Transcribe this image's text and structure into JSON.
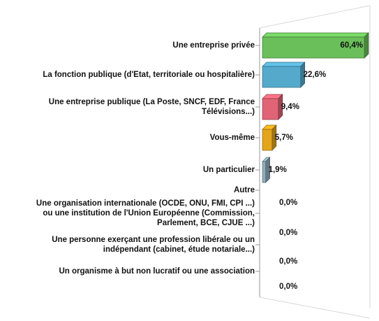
{
  "chart_data": {
    "type": "bar3d",
    "categories": [
      "Une entreprise privée",
      "La fonction publique (d'Etat, territoriale ou hospitalière)",
      "Une entreprise publique (La Poste, SNCF, EDF, France\nTélévisions...)",
      "Vous-même",
      "Un particulier",
      "Autre",
      "Une organisation internationale (OCDE, ONU, FMI, CPI ...)\nou une institution de l'Union Européenne (Commission,\nParlement, BCE, CJUE ...)",
      "Une personne exerçant une profession libérale ou un\nindépendant (cabinet, étude notariale...)",
      "Un organisme à but non lucratif ou une association"
    ],
    "values": [
      60.4,
      22.6,
      9.4,
      5.7,
      1.9,
      0,
      0,
      0,
      0
    ],
    "value_labels": [
      "60,4%",
      "22,6%",
      "9,4%",
      "5,7%",
      "1,9%",
      "0,0%",
      "0,0%",
      "0,0%",
      "0,0%"
    ],
    "colors": [
      "#6abf5a",
      "#55aacc",
      "#e06476",
      "#e3a51c",
      "#8fadbd",
      "#999999",
      "#999999",
      "#999999",
      "#999999"
    ]
  }
}
